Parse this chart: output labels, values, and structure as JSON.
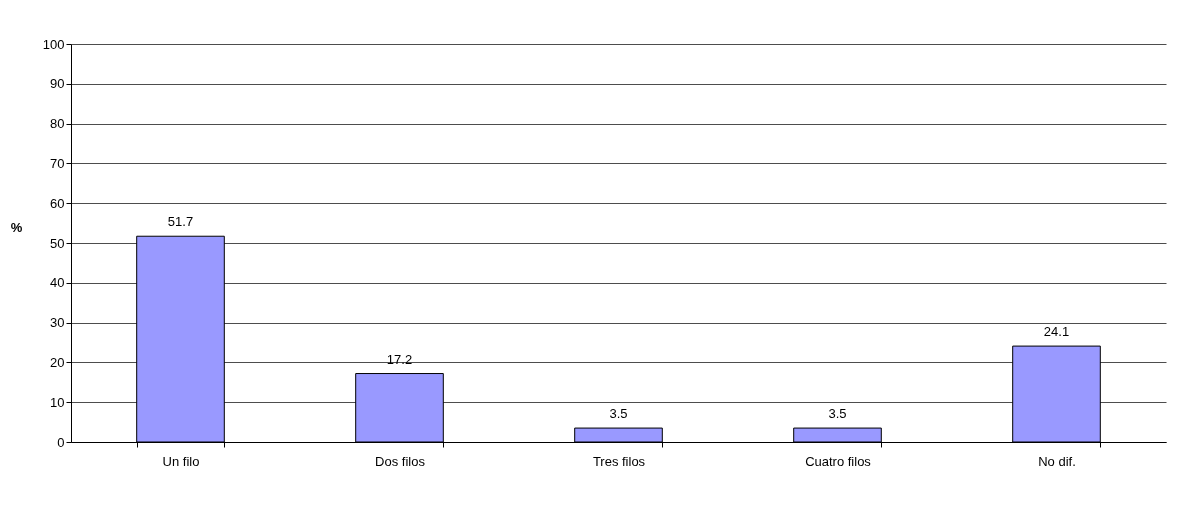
{
  "chart_data": {
    "type": "bar",
    "ylabel": "%",
    "categories": [
      "Un filo",
      "Dos filos",
      "Tres filos",
      "Cuatro filos",
      "No dif."
    ],
    "values": [
      51.7,
      17.2,
      3.5,
      3.5,
      24.1
    ],
    "color": "#9999ff",
    "ylim": [
      0,
      100
    ],
    "yticks": [
      0,
      10,
      20,
      30,
      40,
      50,
      60,
      70,
      80,
      90,
      100
    ],
    "grid": "y",
    "data_labels": true
  }
}
